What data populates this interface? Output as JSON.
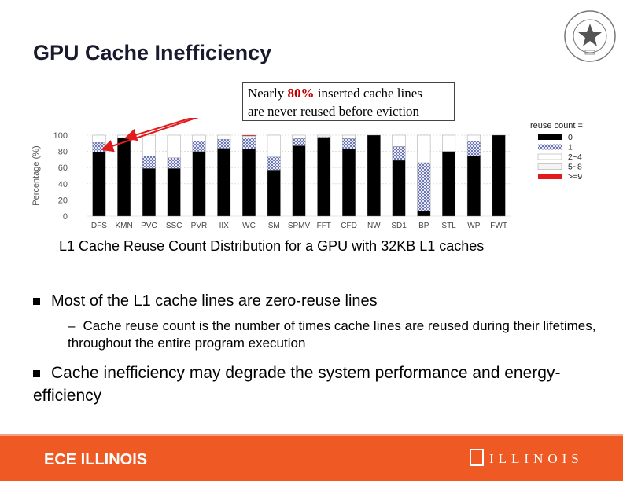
{
  "slide": {
    "title": "GPU Cache Inefficiency",
    "callout": {
      "pre": "Nearly ",
      "highlight": "80%",
      "post": " inserted cache lines",
      "line2": "are never reused before eviction"
    },
    "caption": "L1 Cache Reuse Count Distribution for a GPU with 32KB L1 caches",
    "bullet1": "Most of the L1 cache lines are zero-reuse lines",
    "sub_bullet_dash": "–",
    "sub_bullet": "Cache reuse count is the number of times cache lines are reused during their lifetimes, throughout the entire program execution",
    "bullet2": "Cache inefficiency may degrade the system performance and energy-efficiency"
  },
  "footer": {
    "left": "ECE ILLINOIS",
    "right": "ILLINOIS",
    "bg_color": "#ef5a24"
  },
  "chart_data": {
    "type": "bar",
    "stacked": true,
    "ylabel": "Percentage (%)",
    "ylim": [
      0,
      100
    ],
    "yticks": [
      0,
      20,
      40,
      60,
      80,
      100
    ],
    "legend_title": "reuse count =",
    "legend_position": "right",
    "categories": [
      "DFS",
      "KMN",
      "PVC",
      "SSC",
      "PVR",
      "IIX",
      "WC",
      "SM",
      "SPMV",
      "FFT",
      "CFD",
      "NW",
      "SD1",
      "BP",
      "STL",
      "WP",
      "FWT"
    ],
    "series": [
      {
        "name": "0",
        "color": "#000000",
        "values": [
          79,
          97,
          59,
          59,
          80,
          84,
          83,
          57,
          87,
          97,
          83,
          100,
          69,
          6,
          80,
          74,
          100
        ]
      },
      {
        "name": "1",
        "color": "#9fa7d6",
        "values": [
          12,
          0,
          15,
          13,
          13,
          11,
          14,
          16,
          9,
          1,
          13,
          0,
          17,
          60,
          0,
          19,
          0
        ]
      },
      {
        "name": "2~4",
        "color": "#ffffff",
        "values": [
          9,
          3,
          26,
          28,
          7,
          5,
          2,
          27,
          4,
          2,
          4,
          0,
          14,
          34,
          20,
          7,
          0
        ]
      },
      {
        "name": "5~8",
        "color": "#f2f2f2",
        "values": [
          0,
          0,
          0,
          0,
          0,
          0,
          0,
          0,
          0,
          0,
          0,
          0,
          0,
          0,
          0,
          0,
          0
        ]
      },
      {
        "name": ">=9",
        "color": "#e31a1c",
        "values": [
          0,
          0,
          0,
          0,
          0,
          0,
          1,
          0,
          0,
          0,
          0,
          0,
          0,
          0,
          0,
          0,
          0
        ]
      }
    ]
  }
}
